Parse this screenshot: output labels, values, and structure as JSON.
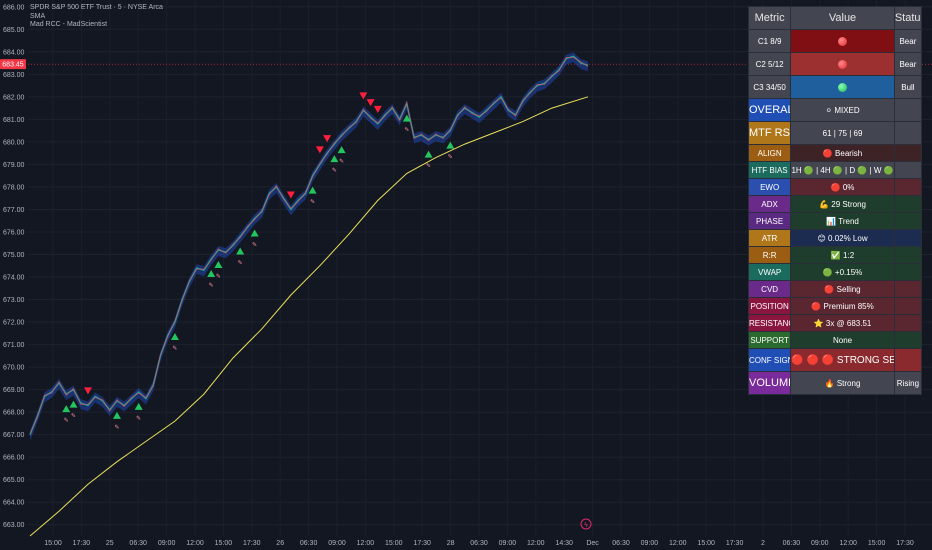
{
  "legend": {
    "symbol": "SPDR S&P 500 ETF Trust · 5 · NYSE Arca",
    "line2": "SMA",
    "line3": "Mad RCC - MadScientist"
  },
  "price_label": "683.45",
  "chart_data": {
    "type": "line",
    "title": "SPDR S&P 500 ETF Trust · 5 · NYSE Arca",
    "ylim": [
      662.5,
      686.3
    ],
    "y_ticks": [
      "686.00",
      "685.00",
      "684.00",
      "683.00",
      "682.00",
      "681.00",
      "680.00",
      "679.00",
      "678.00",
      "677.00",
      "676.00",
      "675.00",
      "674.00",
      "673.00",
      "672.00",
      "671.00",
      "670.00",
      "669.00",
      "668.00",
      "667.00",
      "666.00",
      "665.00",
      "664.00",
      "663.00"
    ],
    "x_ticks": [
      "15:00",
      "17:30",
      "25",
      "06:30",
      "09:00",
      "12:00",
      "15:00",
      "17:30",
      "26",
      "06:30",
      "09:00",
      "12:00",
      "15:00",
      "17:30",
      "28",
      "06:30",
      "09:00",
      "12:00",
      "14:30",
      "Dec",
      "06:30",
      "09:00",
      "12:00",
      "15:00",
      "17:30",
      "2",
      "06:30",
      "09:00",
      "12:00",
      "15:00",
      "17:30"
    ],
    "series": [
      {
        "x": [
          0,
          1,
          2,
          3,
          4,
          5,
          6,
          7,
          8,
          9,
          10,
          11,
          12,
          13,
          14,
          15,
          16,
          17,
          18,
          19,
          20,
          21,
          22,
          23,
          24,
          25,
          26,
          27,
          28,
          29,
          30,
          31,
          32,
          33,
          34,
          35,
          36,
          37,
          38,
          39,
          40,
          41,
          42,
          43,
          44,
          45,
          46,
          47,
          48,
          49,
          50,
          51,
          52,
          53,
          54,
          55,
          56,
          57,
          58,
          59,
          60,
          61,
          62,
          63,
          64,
          65,
          66,
          67,
          68,
          69,
          70,
          71,
          72,
          73,
          74,
          75,
          76,
          77
        ],
        "y": [
          667.0,
          667.8,
          668.7,
          668.9,
          669.3,
          668.8,
          669.0,
          668.4,
          668.3,
          668.7,
          668.5,
          668.1,
          668.5,
          668.3,
          668.6,
          668.9,
          668.6,
          669.2,
          670.5,
          671.4,
          672.0,
          673.0,
          673.8,
          674.4,
          674.3,
          674.8,
          675.2,
          675.1,
          675.4,
          675.8,
          676.2,
          676.6,
          676.9,
          677.7,
          678.0,
          677.5,
          677.0,
          677.4,
          677.7,
          678.5,
          679.0,
          679.5,
          679.9,
          680.3,
          680.6,
          680.9,
          681.4,
          681.1,
          680.8,
          681.2,
          681.5,
          681.0,
          681.7,
          680.2,
          680.3,
          680.1,
          680.3,
          680.2,
          680.5,
          681.2,
          681.5,
          681.3,
          681.1,
          681.4,
          681.7,
          682.0,
          681.4,
          681.2,
          681.8,
          682.2,
          682.5,
          682.6,
          682.9,
          683.2,
          683.7,
          683.8,
          683.5,
          683.4
        ],
        "name": ""
      },
      {
        "x": [
          0,
          4,
          8,
          12,
          16,
          20,
          24,
          28,
          32,
          36,
          40,
          44,
          48,
          52,
          56,
          60,
          64,
          68,
          72,
          77
        ],
        "y": [
          662.5,
          663.6,
          664.8,
          665.8,
          666.7,
          667.6,
          668.8,
          670.4,
          671.7,
          673.2,
          674.5,
          675.9,
          677.4,
          678.6,
          679.3,
          679.9,
          680.4,
          680.9,
          681.5,
          682.0
        ],
        "name": ""
      }
    ],
    "signals_up_x": [
      5,
      6,
      12,
      15,
      20,
      25,
      26,
      29,
      31,
      39,
      42,
      43,
      52,
      55,
      58
    ],
    "signals_down_x": [
      8,
      36,
      40,
      41,
      46,
      47,
      48
    ]
  },
  "table": {
    "headers": {
      "metric": "Metric",
      "value": "Value",
      "status": "Status"
    },
    "rows": [
      {
        "metric": "C1 8/9",
        "value": "",
        "dot": "red",
        "status": "Bear",
        "mbg": "#434651",
        "vbg": "#7f0f12",
        "sbg": "#434651",
        "tall": true
      },
      {
        "metric": "C2 5/12",
        "value": "",
        "dot": "red",
        "status": "Bear",
        "mbg": "#434651",
        "vbg": "#9c2f2f",
        "sbg": "#434651",
        "tall": true
      },
      {
        "metric": "C3 34/50",
        "value": "",
        "dot": "green",
        "status": "Bull",
        "mbg": "#434651",
        "vbg": "#1f5f9e",
        "sbg": "#434651",
        "tall": true
      },
      {
        "metric": "OVERALL",
        "value": "⚪ MIXED",
        "dot": "",
        "status": "",
        "mbg": "#1f4fb4",
        "vbg": "#434651",
        "sbg": "#434651",
        "tall": true,
        "big": true
      },
      {
        "metric": "MTF RSI",
        "value": "61 | 75 | 69",
        "dot": "",
        "status": "",
        "mbg": "#b0771a",
        "vbg": "#434651",
        "sbg": "#434651",
        "tall": true,
        "big": true
      },
      {
        "metric": "ALIGN",
        "value": "🔴 Bearish",
        "dot": "",
        "status": "",
        "mbg": "#9a5d12",
        "vbg": "#3d2226",
        "sbg": "#3d2226"
      },
      {
        "metric": "HTF BIAS",
        "value": "1H 🟢 | 4H 🟢 | D 🟢 | W 🟢",
        "dot": "",
        "status": "",
        "mbg": "#1b6b5e",
        "vbg": "#434651",
        "sbg": "#434651"
      },
      {
        "metric": "EWO",
        "value": "🔴 0%",
        "dot": "",
        "status": "",
        "mbg": "#2a4fae",
        "vbg": "#5a2630",
        "sbg": "#5a2630"
      },
      {
        "metric": "ADX",
        "value": "💪 29 Strong",
        "dot": "",
        "status": "",
        "mbg": "#6a2a8a",
        "vbg": "#1f3d2c",
        "sbg": "#1f3d2c"
      },
      {
        "metric": "PHASE",
        "value": "📊 Trend",
        "dot": "",
        "status": "",
        "mbg": "#5a2a82",
        "vbg": "#1f3d2c",
        "sbg": "#1f3d2c"
      },
      {
        "metric": "ATR",
        "value": "😊 0.02% Low",
        "dot": "",
        "status": "",
        "mbg": "#b0771a",
        "vbg": "#1c2b50",
        "sbg": "#1c2b50"
      },
      {
        "metric": "R:R",
        "value": "✅ 1:2",
        "dot": "",
        "status": "",
        "mbg": "#9a5d12",
        "vbg": "#1f3d2c",
        "sbg": "#1f3d2c"
      },
      {
        "metric": "VWAP",
        "value": "🟢 +0.15%",
        "dot": "",
        "status": "",
        "mbg": "#1b6b5e",
        "vbg": "#1f3d2c",
        "sbg": "#1f3d2c"
      },
      {
        "metric": "CVD",
        "value": "🔴 Selling",
        "dot": "",
        "status": "",
        "mbg": "#6a2a8a",
        "vbg": "#5a2630",
        "sbg": "#5a2630"
      },
      {
        "metric": "POSITION",
        "value": "🔴 Premium 85%",
        "dot": "",
        "status": "",
        "mbg": "#8a1640",
        "vbg": "#5a2630",
        "sbg": "#5a2630"
      },
      {
        "metric": "RESISTANCE",
        "value": "⭐ 3x @ 683.51",
        "dot": "",
        "status": "",
        "mbg": "#8a1640",
        "vbg": "#5a2630",
        "sbg": "#5a2630"
      },
      {
        "metric": "SUPPORT",
        "value": "None",
        "dot": "",
        "status": "",
        "mbg": "#2a6a2e",
        "vbg": "#1f3d2c",
        "sbg": "#1f3d2c"
      },
      {
        "metric": "CONF SIGNAL",
        "value": "🔴 🔴 🔴 STRONG SELL",
        "dot": "",
        "status": "",
        "mbg": "#1f4fb4",
        "vbg": "#8a2a2e",
        "sbg": "#8a2a2e",
        "tall": true,
        "mid": true
      },
      {
        "metric": "VOLUME",
        "value": "🔥 Strong",
        "dot": "",
        "status": "Rising",
        "mbg": "#7a2a9a",
        "vbg": "#434651",
        "sbg": "#434651",
        "tall": true,
        "big": true
      }
    ]
  }
}
